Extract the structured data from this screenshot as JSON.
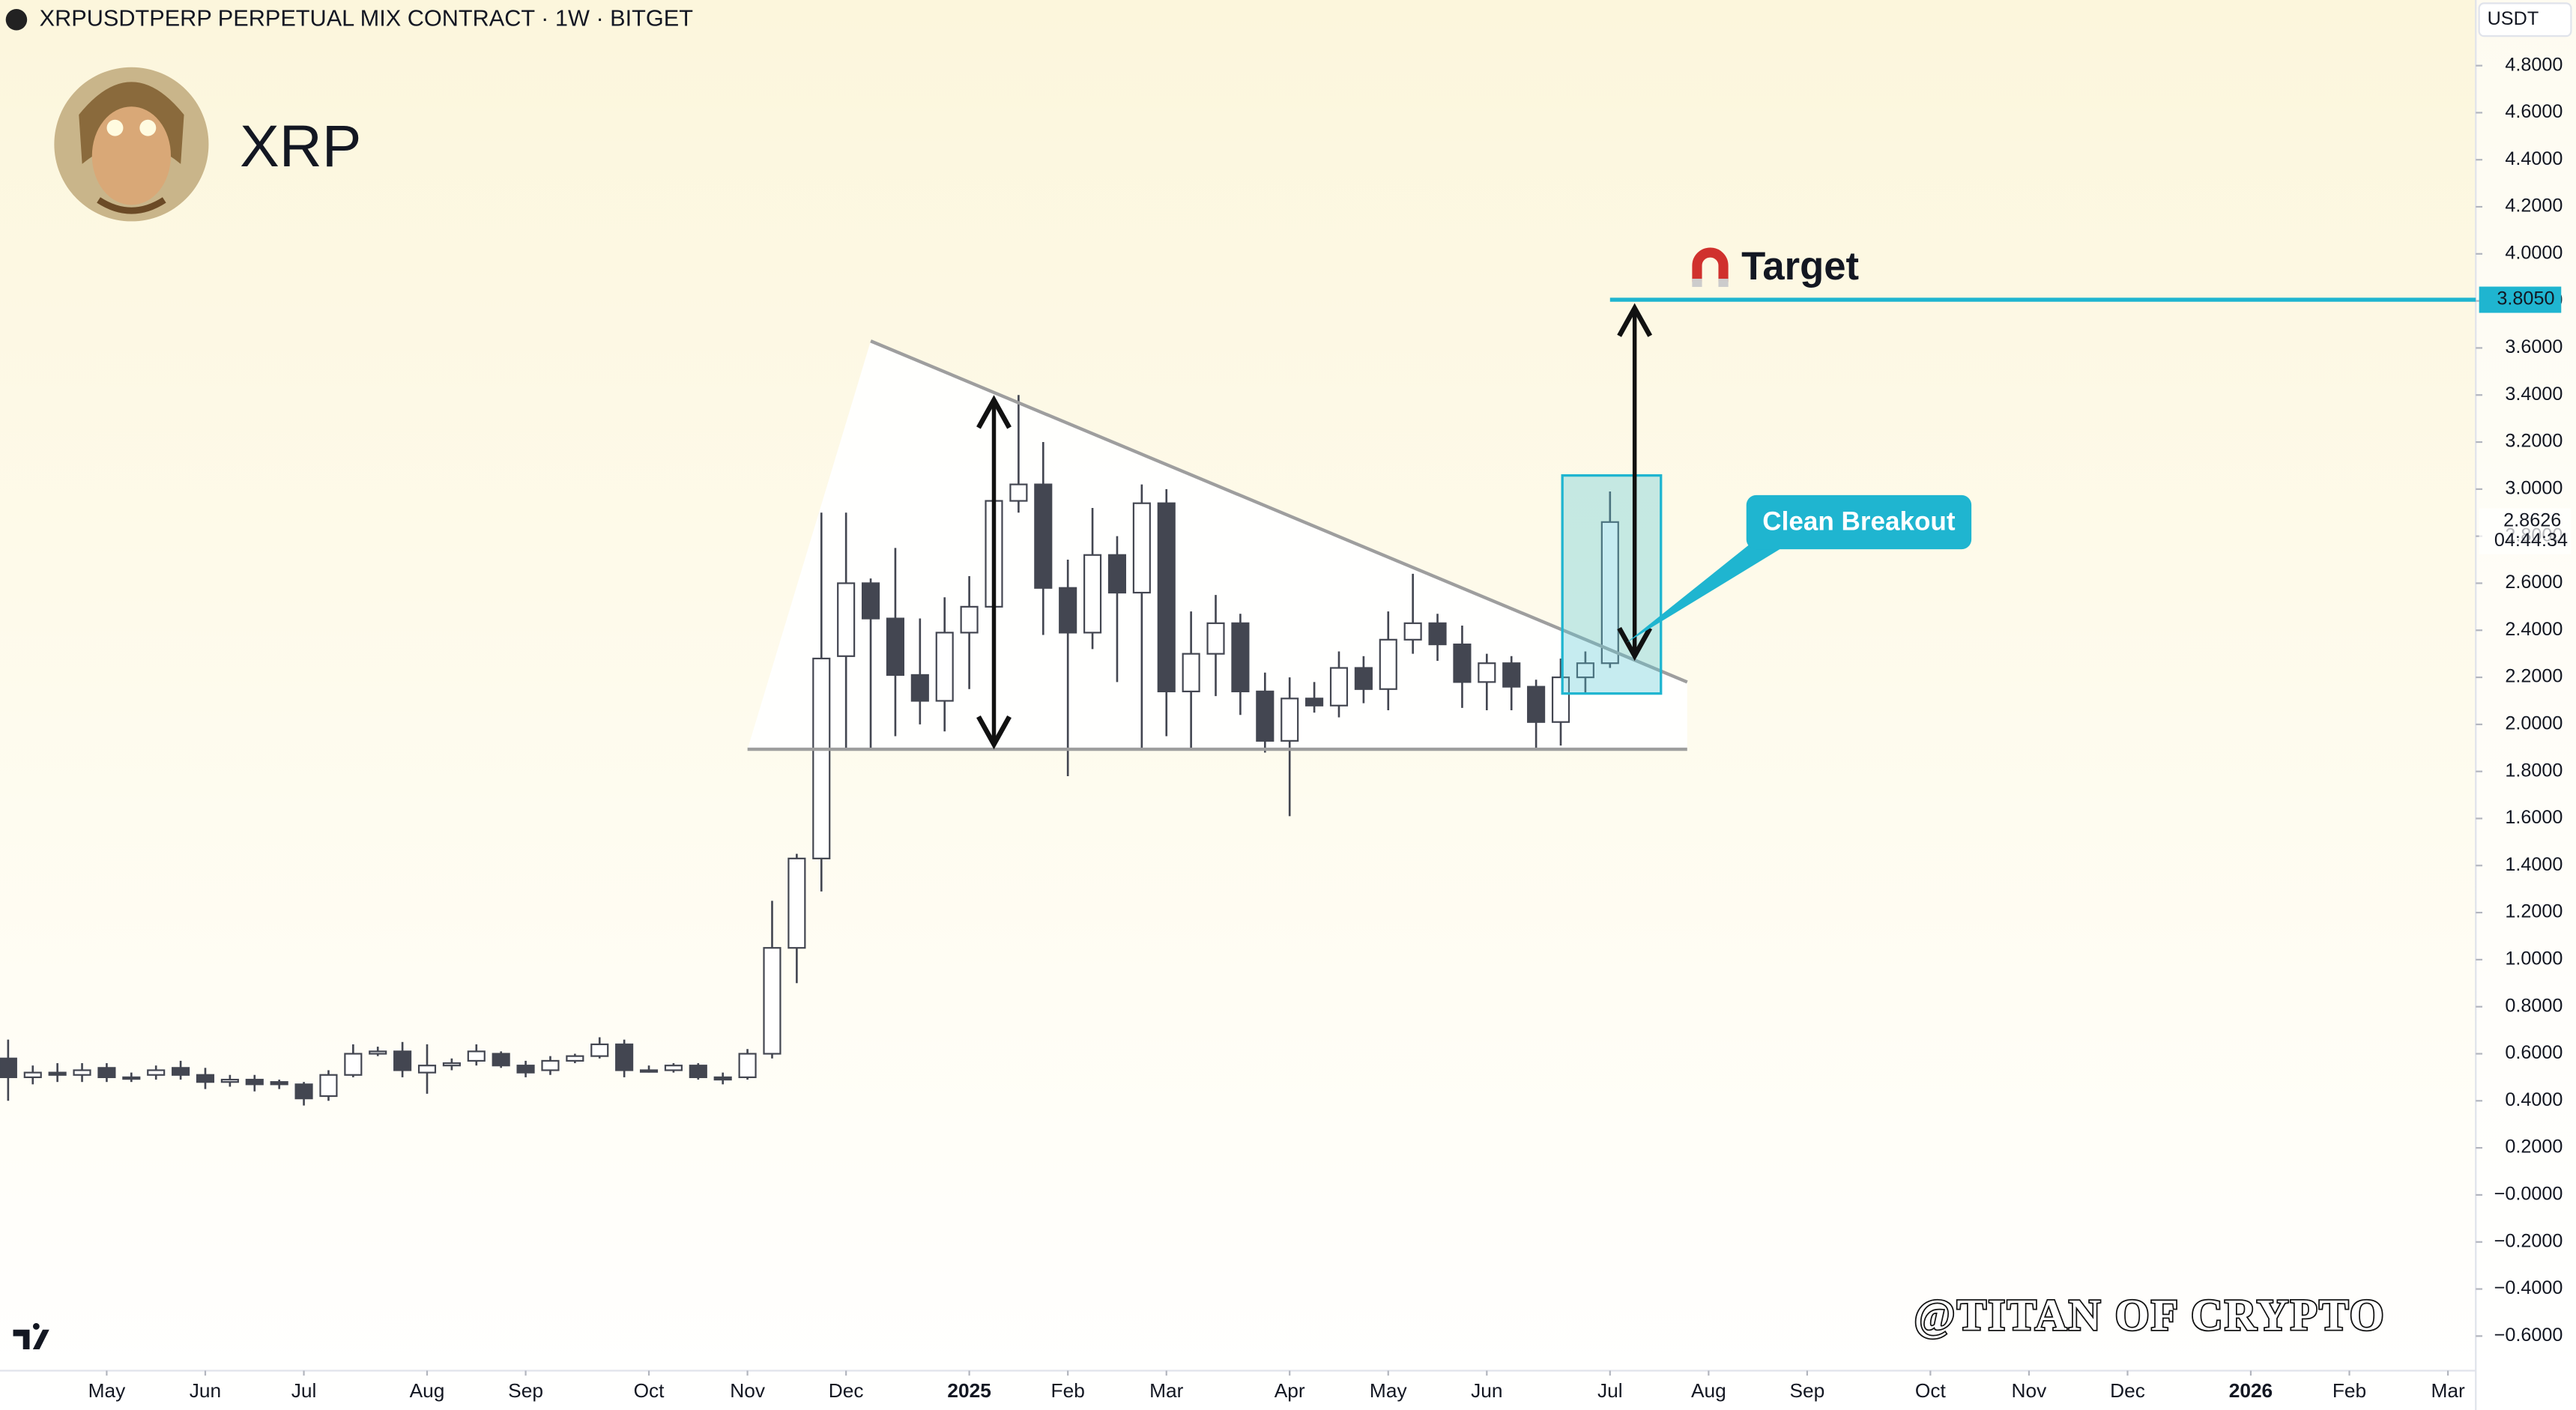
{
  "header": {
    "title": "XRPUSDTPERP PERPETUAL MIX CONTRACT · 1W · BITGET",
    "currency": "USDT",
    "symbol": "XRP"
  },
  "annotations": {
    "target": "Target",
    "breakout": "Clean Breakout",
    "watermark": "@TITAN OF CRYPTO"
  },
  "chart_data": {
    "type": "candlestick",
    "categories": [
      null,
      null,
      null,
      null,
      null,
      null,
      null,
      null,
      null,
      null,
      null,
      null,
      null,
      null,
      null,
      null,
      null,
      null,
      null,
      null,
      null,
      null,
      null,
      null,
      null,
      null,
      null,
      null,
      null,
      null,
      null,
      null,
      null,
      null,
      null,
      null,
      null,
      null,
      null,
      null,
      null,
      null,
      null,
      null,
      null,
      null,
      null,
      null,
      null,
      null,
      null,
      null,
      null,
      null,
      null,
      null,
      null,
      null,
      null,
      null,
      null,
      null,
      null,
      null,
      null,
      null
    ],
    "values": [
      [
        0.58,
        0.66,
        0.4,
        0.5
      ],
      [
        0.5,
        0.55,
        0.47,
        0.52
      ],
      [
        0.52,
        0.56,
        0.48,
        0.51
      ],
      [
        0.51,
        0.56,
        0.48,
        0.53
      ],
      [
        0.54,
        0.56,
        0.48,
        0.5
      ],
      [
        0.5,
        0.52,
        0.48,
        0.5
      ],
      [
        0.51,
        0.55,
        0.49,
        0.53
      ],
      [
        0.54,
        0.57,
        0.49,
        0.51
      ],
      [
        0.51,
        0.54,
        0.45,
        0.48
      ],
      [
        0.48,
        0.51,
        0.46,
        0.49
      ],
      [
        0.49,
        0.51,
        0.44,
        0.47
      ],
      [
        0.48,
        0.49,
        0.45,
        0.47
      ],
      [
        0.47,
        0.48,
        0.38,
        0.41
      ],
      [
        0.42,
        0.53,
        0.4,
        0.51
      ],
      [
        0.51,
        0.64,
        0.5,
        0.6
      ],
      [
        0.6,
        0.63,
        0.59,
        0.61
      ],
      [
        0.61,
        0.65,
        0.5,
        0.53
      ],
      [
        0.52,
        0.64,
        0.43,
        0.55
      ],
      [
        0.55,
        0.58,
        0.53,
        0.56
      ],
      [
        0.57,
        0.64,
        0.55,
        0.61
      ],
      [
        0.6,
        0.61,
        0.54,
        0.55
      ],
      [
        0.55,
        0.57,
        0.5,
        0.52
      ],
      [
        0.53,
        0.59,
        0.51,
        0.57
      ],
      [
        0.57,
        0.6,
        0.56,
        0.59
      ],
      [
        0.59,
        0.67,
        0.58,
        0.64
      ],
      [
        0.64,
        0.66,
        0.5,
        0.53
      ],
      [
        0.53,
        0.55,
        0.52,
        0.53
      ],
      [
        0.53,
        0.56,
        0.52,
        0.55
      ],
      [
        0.55,
        0.56,
        0.49,
        0.5
      ],
      [
        0.5,
        0.52,
        0.47,
        0.49
      ],
      [
        0.5,
        0.62,
        0.49,
        0.6
      ],
      [
        0.6,
        1.25,
        0.58,
        1.05
      ],
      [
        1.05,
        1.45,
        0.9,
        1.43
      ],
      [
        1.43,
        2.9,
        1.29,
        2.28
      ],
      [
        2.29,
        2.9,
        1.9,
        2.6
      ],
      [
        2.6,
        2.62,
        1.9,
        2.45
      ],
      [
        2.45,
        2.75,
        1.95,
        2.21
      ],
      [
        2.21,
        2.45,
        2.0,
        2.1
      ],
      [
        2.1,
        2.54,
        1.97,
        2.39
      ],
      [
        2.39,
        2.63,
        2.15,
        2.5
      ],
      [
        2.5,
        3.38,
        2.4,
        2.95
      ],
      [
        2.95,
        3.4,
        2.9,
        3.02
      ],
      [
        3.02,
        3.2,
        2.38,
        2.58
      ],
      [
        2.58,
        2.7,
        1.78,
        2.39
      ],
      [
        2.39,
        2.92,
        2.32,
        2.72
      ],
      [
        2.72,
        2.8,
        2.18,
        2.56
      ],
      [
        2.56,
        3.02,
        1.9,
        2.94
      ],
      [
        2.94,
        3.0,
        1.95,
        2.14
      ],
      [
        2.14,
        2.48,
        1.9,
        2.3
      ],
      [
        2.3,
        2.55,
        2.12,
        2.43
      ],
      [
        2.43,
        2.47,
        2.04,
        2.14
      ],
      [
        2.14,
        2.22,
        1.88,
        1.93
      ],
      [
        1.93,
        2.2,
        1.61,
        2.11
      ],
      [
        2.11,
        2.18,
        2.05,
        2.08
      ],
      [
        2.08,
        2.31,
        2.03,
        2.24
      ],
      [
        2.24,
        2.29,
        2.09,
        2.15
      ],
      [
        2.15,
        2.48,
        2.06,
        2.36
      ],
      [
        2.36,
        2.64,
        2.3,
        2.43
      ],
      [
        2.43,
        2.47,
        2.27,
        2.34
      ],
      [
        2.34,
        2.42,
        2.07,
        2.18
      ],
      [
        2.18,
        2.3,
        2.06,
        2.26
      ],
      [
        2.26,
        2.29,
        2.06,
        2.16
      ],
      [
        2.16,
        2.19,
        1.9,
        2.01
      ],
      [
        2.01,
        2.28,
        1.91,
        2.2
      ],
      [
        2.2,
        2.31,
        2.13,
        2.26
      ],
      [
        2.26,
        2.99,
        2.24,
        2.86
      ]
    ],
    "up_color": "#ffffff",
    "down_color": "#434651",
    "outline_color": "#434651",
    "xlim": [
      -0.33,
      100.13
    ],
    "xticks": [
      {
        "value": 4,
        "label": "May"
      },
      {
        "value": 8,
        "label": "Jun"
      },
      {
        "value": 12,
        "label": "Jul"
      },
      {
        "value": 17,
        "label": "Aug"
      },
      {
        "value": 21,
        "label": "Sep"
      },
      {
        "value": 26,
        "label": "Oct"
      },
      {
        "value": 30,
        "label": "Nov"
      },
      {
        "value": 34,
        "label": "Dec"
      },
      {
        "value": 39,
        "label": "2025"
      },
      {
        "value": 43,
        "label": "Feb"
      },
      {
        "value": 47,
        "label": "Mar"
      },
      {
        "value": 52,
        "label": "Apr"
      },
      {
        "value": 56,
        "label": "May"
      },
      {
        "value": 60,
        "label": "Jun"
      },
      {
        "value": 65,
        "label": "Jul"
      },
      {
        "value": 69,
        "label": "Aug"
      },
      {
        "value": 73,
        "label": "Sep"
      },
      {
        "value": 78,
        "label": "Oct"
      },
      {
        "value": 82,
        "label": "Nov"
      },
      {
        "value": 86,
        "label": "Dec"
      },
      {
        "value": 91,
        "label": "2026"
      },
      {
        "value": 95,
        "label": "Feb"
      },
      {
        "value": 99,
        "label": "Mar"
      }
    ],
    "ylim": [
      -0.747,
      5.079
    ],
    "yticks": [
      {
        "value": 4.8,
        "label": "4.8000"
      },
      {
        "value": 4.6,
        "label": "4.6000"
      },
      {
        "value": 4.4,
        "label": "4.4000"
      },
      {
        "value": 4.2,
        "label": "4.2000"
      },
      {
        "value": 4,
        "label": "4.0000"
      },
      {
        "value": 3.8,
        "label": "3.8000"
      },
      {
        "value": 3.6,
        "label": "3.6000"
      },
      {
        "value": 3.4,
        "label": "3.4000"
      },
      {
        "value": 3.2,
        "label": "3.2000"
      },
      {
        "value": 3,
        "label": "3.0000"
      },
      {
        "value": 2.8,
        "label": "2.8000"
      },
      {
        "value": 2.6,
        "label": "2.6000"
      },
      {
        "value": 2.4,
        "label": "2.4000"
      },
      {
        "value": 2.2,
        "label": "2.2000"
      },
      {
        "value": 2,
        "label": "2.0000"
      },
      {
        "value": 1.8,
        "label": "1.8000"
      },
      {
        "value": 1.6,
        "label": "1.6000"
      },
      {
        "value": 1.4,
        "label": "1.4000"
      },
      {
        "value": 1.2,
        "label": "1.2000"
      },
      {
        "value": 1,
        "label": "1.0000"
      },
      {
        "value": 0.8,
        "label": "0.8000"
      },
      {
        "value": 0.6,
        "label": "0.6000"
      },
      {
        "value": 0.4,
        "label": "0.4000"
      },
      {
        "value": 0.2,
        "label": "0.2000"
      },
      {
        "value": 0,
        "label": "−0.0000"
      },
      {
        "value": -0.2,
        "label": "−0.2000"
      },
      {
        "value": -0.4,
        "label": "−0.4000"
      },
      {
        "value": -0.6,
        "label": "−0.6000"
      }
    ],
    "target": {
      "value": 3.805,
      "label": "3.8050",
      "color": "#1fb5d0"
    },
    "last_price": {
      "value": 2.8626,
      "label": "2.8626",
      "countdown": "04:44:34"
    }
  }
}
